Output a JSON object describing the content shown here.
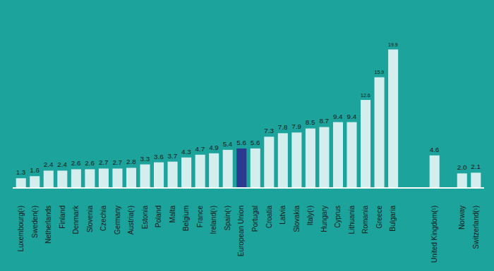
{
  "chart_data": {
    "type": "bar",
    "categories": [
      "Luxembourg(¹)",
      "Sweden(¹)",
      "Netherlands",
      "Finland",
      "Denmark",
      "Slovenia",
      "Czechia",
      "Germany",
      "Austria(¹)",
      "Estonia",
      "Poland",
      "Malta",
      "Belgium",
      "France",
      "Ireland(¹)",
      "Spain(¹)",
      "European Union",
      "Portugal",
      "Croatia",
      "Latvia",
      "Slovakia",
      "Italy(¹)",
      "Hungary",
      "Cyprus",
      "Lithuania",
      "Romania",
      "Greece",
      "Bulgaria",
      null,
      null,
      "United Kingdom(¹)",
      null,
      "Norway",
      "Switzerland(¹)"
    ],
    "values": [
      1.3,
      1.6,
      2.4,
      2.4,
      2.6,
      2.6,
      2.7,
      2.7,
      2.8,
      3.3,
      3.6,
      3.7,
      4.3,
      4.7,
      4.9,
      5.4,
      5.6,
      5.6,
      7.3,
      7.8,
      7.9,
      8.5,
      8.7,
      9.4,
      9.4,
      12.6,
      15.9,
      19.9,
      null,
      null,
      4.6,
      null,
      2.0,
      2.1
    ],
    "value_labels": [
      "1.3",
      "1.6",
      "2.4",
      "2.4",
      "2.6",
      "2.6",
      "2.7",
      "2.7",
      "2.8",
      "3.3",
      "3.6",
      "3.7",
      "4.3",
      "4.7",
      "4.9",
      "5.4",
      "5.6",
      "5.6",
      "7.3",
      "7.8",
      "7.9",
      "8.5",
      "8.7",
      "9.4",
      "9.4",
      "12.6",
      "15.9",
      "19.9",
      null,
      null,
      "4.6",
      null,
      "2.0",
      "2.1"
    ],
    "colors": [
      "#d4eeee",
      "#d4eeee",
      "#d4eeee",
      "#d4eeee",
      "#d4eeee",
      "#d4eeee",
      "#d4eeee",
      "#d4eeee",
      "#d4eeee",
      "#d4eeee",
      "#d4eeee",
      "#d4eeee",
      "#d4eeee",
      "#d4eeee",
      "#d4eeee",
      "#d4eeee",
      "#2b3a8f",
      "#d4eeee",
      "#d4eeee",
      "#d4eeee",
      "#d4eeee",
      "#d4eeee",
      "#d4eeee",
      "#d4eeee",
      "#d4eeee",
      "#d4eeee",
      "#d4eeee",
      "#d4eeee",
      null,
      null,
      "#d4eeee",
      null,
      "#d4eeee",
      "#d4eeee"
    ],
    "data_labels": true,
    "tick_labels": "x",
    "grid": false
  }
}
